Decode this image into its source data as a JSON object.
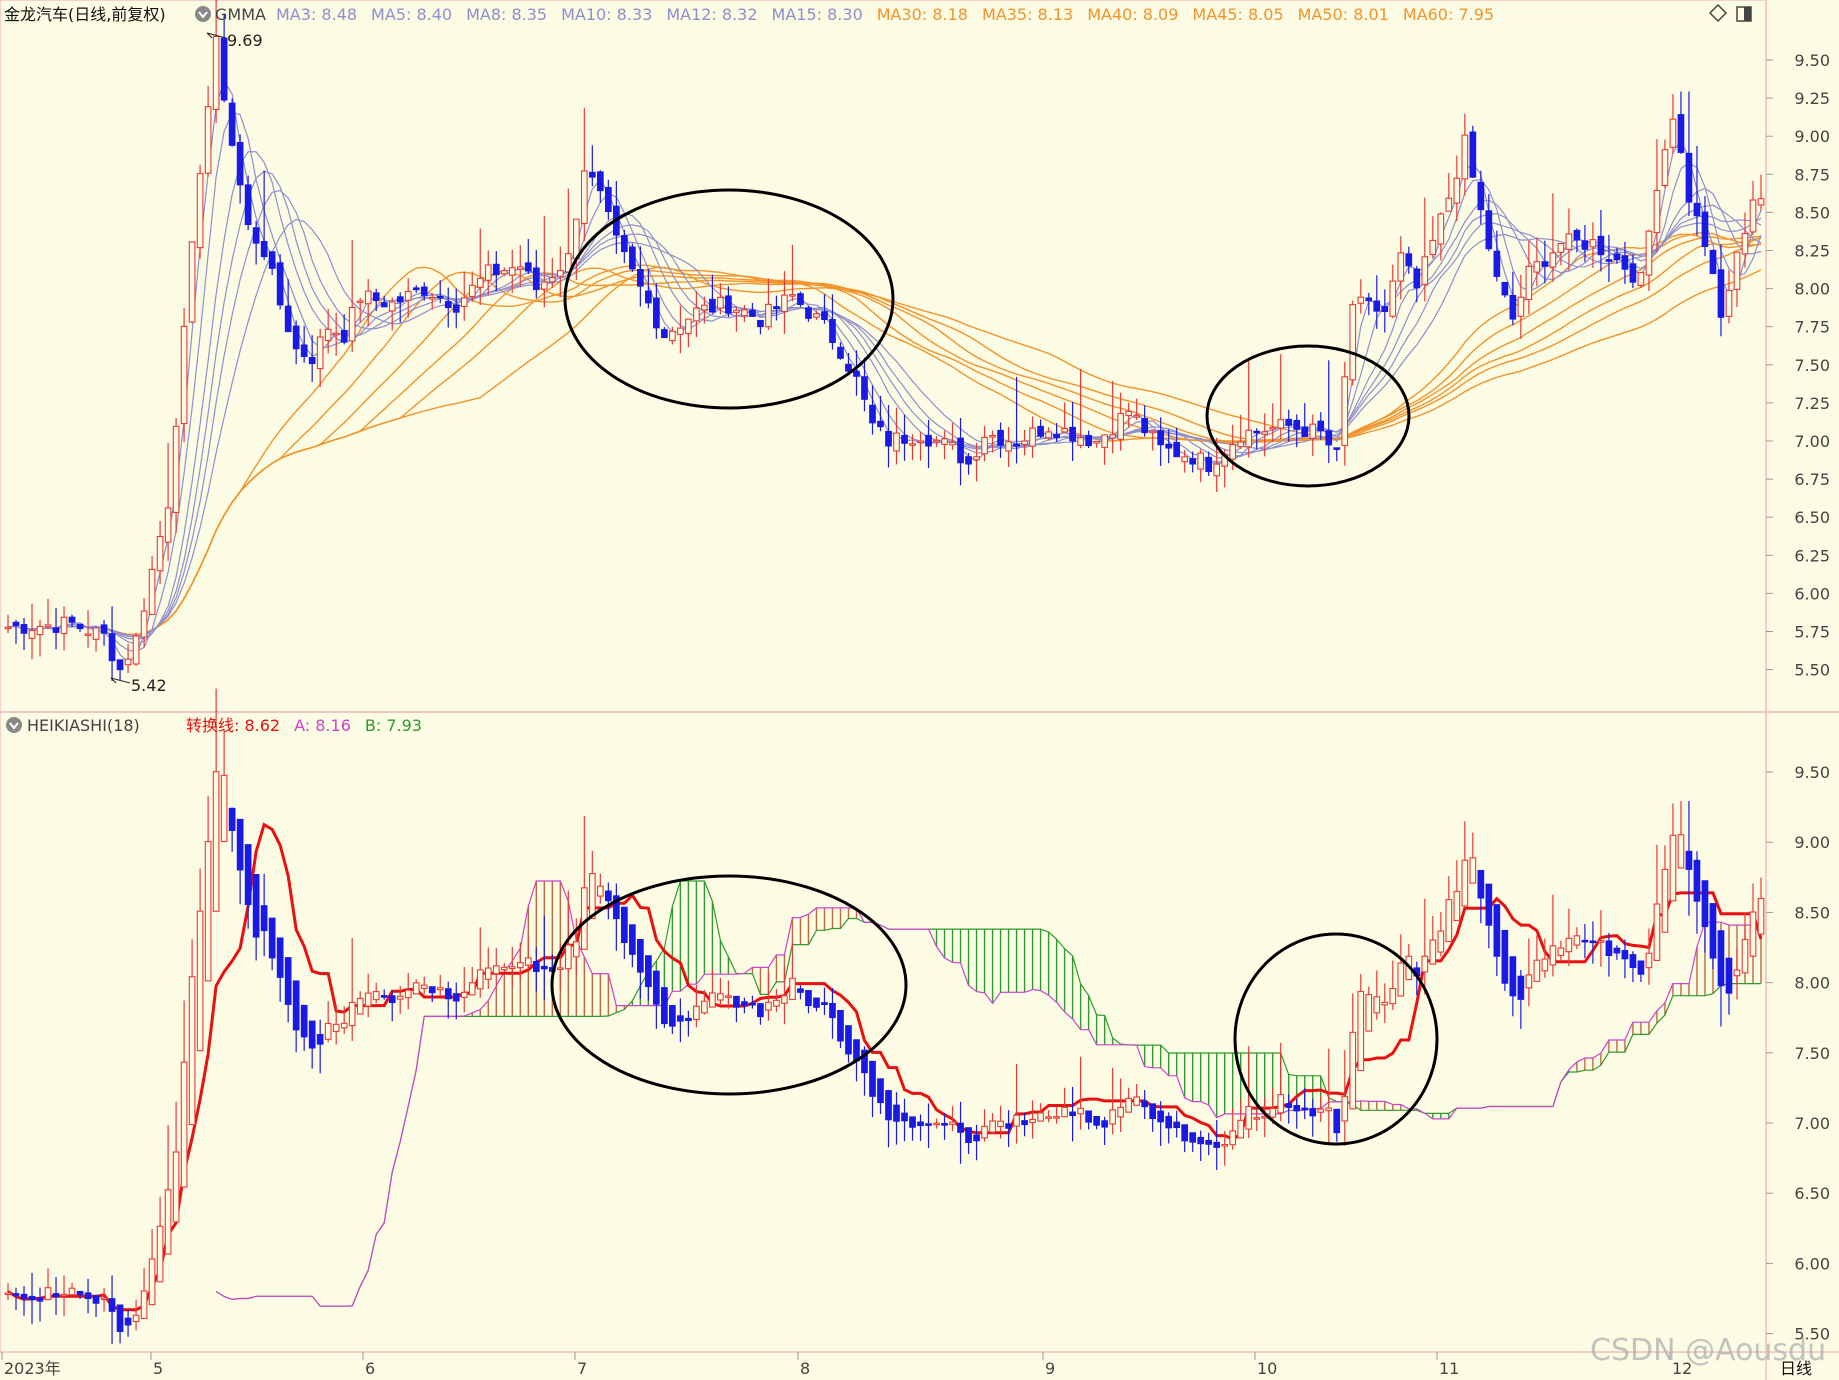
{
  "window": {
    "stock_title": "金龙汽车(日线,前复权)",
    "period_label": "日线",
    "watermark": "CSDN @Aousdu"
  },
  "colors": {
    "background": "#fcfbe3",
    "grid": "#f2c4c4",
    "up_candle": "#e83a3a",
    "down_candle": "#1a1ae6",
    "short_ma": "#8f8fcf",
    "long_ma": "#f2942c",
    "conversion_line": "#e81010",
    "cloud_bull": "#2f9a2f",
    "cloud_bear": "#c06a3a",
    "span_a": "#cc44cc",
    "annotation": "#000000"
  },
  "top_panel": {
    "indicator": "GMMA",
    "legend": [
      {
        "label": "MA3: 8.48",
        "color": "#8f8fcf"
      },
      {
        "label": "MA5: 8.40",
        "color": "#8f8fcf"
      },
      {
        "label": "MA8: 8.35",
        "color": "#8f8fcf"
      },
      {
        "label": "MA10: 8.33",
        "color": "#8f8fcf"
      },
      {
        "label": "MA12: 8.32",
        "color": "#8f8fcf"
      },
      {
        "label": "MA15: 8.30",
        "color": "#8f8fcf"
      },
      {
        "label": "MA30: 8.18",
        "color": "#f2942c"
      },
      {
        "label": "MA35: 8.13",
        "color": "#f2942c"
      },
      {
        "label": "MA40: 8.09",
        "color": "#f2942c"
      },
      {
        "label": "MA45: 8.05",
        "color": "#f2942c"
      },
      {
        "label": "MA50: 8.01",
        "color": "#f2942c"
      },
      {
        "label": "MA60: 7.95",
        "color": "#f2942c"
      }
    ],
    "high_label": "9.69",
    "low_label": "5.42"
  },
  "bottom_panel": {
    "indicator_name": "HEIKIASHI(18)",
    "legend": [
      {
        "label": "转换线: 8.62",
        "color": "#e81010"
      },
      {
        "label": "A: 8.16",
        "color": "#cc44cc"
      },
      {
        "label": "B: 7.93",
        "color": "#2f9a2f"
      }
    ]
  },
  "chart_data": [
    {
      "type": "candlestick",
      "panel": "top",
      "ylim": [
        5.35,
        9.75
      ],
      "y_ticks": [
        "9.50",
        "9.25",
        "9.00",
        "8.75",
        "8.50",
        "8.25",
        "8.00",
        "7.75",
        "7.50",
        "7.25",
        "7.00",
        "6.75",
        "6.50",
        "6.25",
        "6.00",
        "5.75",
        "5.50"
      ],
      "x_ticks": [
        "2023年",
        "5",
        "6",
        "7",
        "8",
        "9",
        "10",
        "11",
        "12"
      ],
      "price_path": [
        [
          0,
          5.78
        ],
        [
          8,
          5.8
        ],
        [
          12,
          5.72
        ],
        [
          14,
          5.5
        ],
        [
          16,
          5.7
        ],
        [
          20,
          6.6
        ],
        [
          24,
          8.8
        ],
        [
          26,
          9.6
        ],
        [
          28,
          8.95
        ],
        [
          30,
          8.4
        ],
        [
          32,
          8.25
        ],
        [
          34,
          7.9
        ],
        [
          36,
          7.6
        ],
        [
          38,
          7.55
        ],
        [
          40,
          7.75
        ],
        [
          42,
          7.7
        ],
        [
          44,
          7.95
        ],
        [
          48,
          7.9
        ],
        [
          52,
          8.0
        ],
        [
          56,
          7.9
        ],
        [
          60,
          8.1
        ],
        [
          64,
          8.15
        ],
        [
          66,
          8.0
        ],
        [
          70,
          8.2
        ],
        [
          72,
          8.8
        ],
        [
          74,
          8.6
        ],
        [
          76,
          8.3
        ],
        [
          78,
          8.1
        ],
        [
          80,
          7.9
        ],
        [
          82,
          7.7
        ],
        [
          86,
          7.85
        ],
        [
          90,
          7.9
        ],
        [
          94,
          7.8
        ],
        [
          98,
          7.95
        ],
        [
          102,
          7.75
        ],
        [
          104,
          7.6
        ],
        [
          106,
          7.4
        ],
        [
          108,
          7.1
        ],
        [
          110,
          7.0
        ],
        [
          114,
          7.05
        ],
        [
          118,
          6.95
        ],
        [
          120,
          6.85
        ],
        [
          122,
          7.05
        ],
        [
          126,
          7.0
        ],
        [
          130,
          7.1
        ],
        [
          136,
          7.0
        ],
        [
          140,
          7.2
        ],
        [
          144,
          6.95
        ],
        [
          148,
          6.9
        ],
        [
          150,
          6.85
        ],
        [
          154,
          7.05
        ],
        [
          160,
          7.1
        ],
        [
          164,
          7.05
        ],
        [
          166,
          6.9
        ],
        [
          168,
          7.9
        ],
        [
          172,
          7.85
        ],
        [
          174,
          8.2
        ],
        [
          176,
          8.0
        ],
        [
          178,
          8.3
        ],
        [
          180,
          8.6
        ],
        [
          182,
          8.95
        ],
        [
          184,
          8.5
        ],
        [
          186,
          8.05
        ],
        [
          188,
          7.8
        ],
        [
          190,
          8.1
        ],
        [
          194,
          8.3
        ],
        [
          198,
          8.3
        ],
        [
          202,
          8.15
        ],
        [
          204,
          8.05
        ],
        [
          206,
          8.7
        ],
        [
          208,
          9.15
        ],
        [
          210,
          8.6
        ],
        [
          212,
          8.3
        ],
        [
          214,
          7.8
        ],
        [
          216,
          8.2
        ],
        [
          218,
          8.6
        ]
      ]
    },
    {
      "type": "candlestick",
      "panel": "bottom",
      "ylim": [
        5.45,
        9.85
      ],
      "y_ticks": [
        "9.50",
        "9.00",
        "8.50",
        "8.00",
        "7.50",
        "7.00",
        "6.50",
        "6.00",
        "5.50"
      ],
      "conversion_line": {
        "name": "转换线",
        "last": 8.62
      },
      "span_a": {
        "name": "A",
        "last": 8.16
      },
      "span_b": {
        "name": "B",
        "last": 7.93
      }
    }
  ]
}
